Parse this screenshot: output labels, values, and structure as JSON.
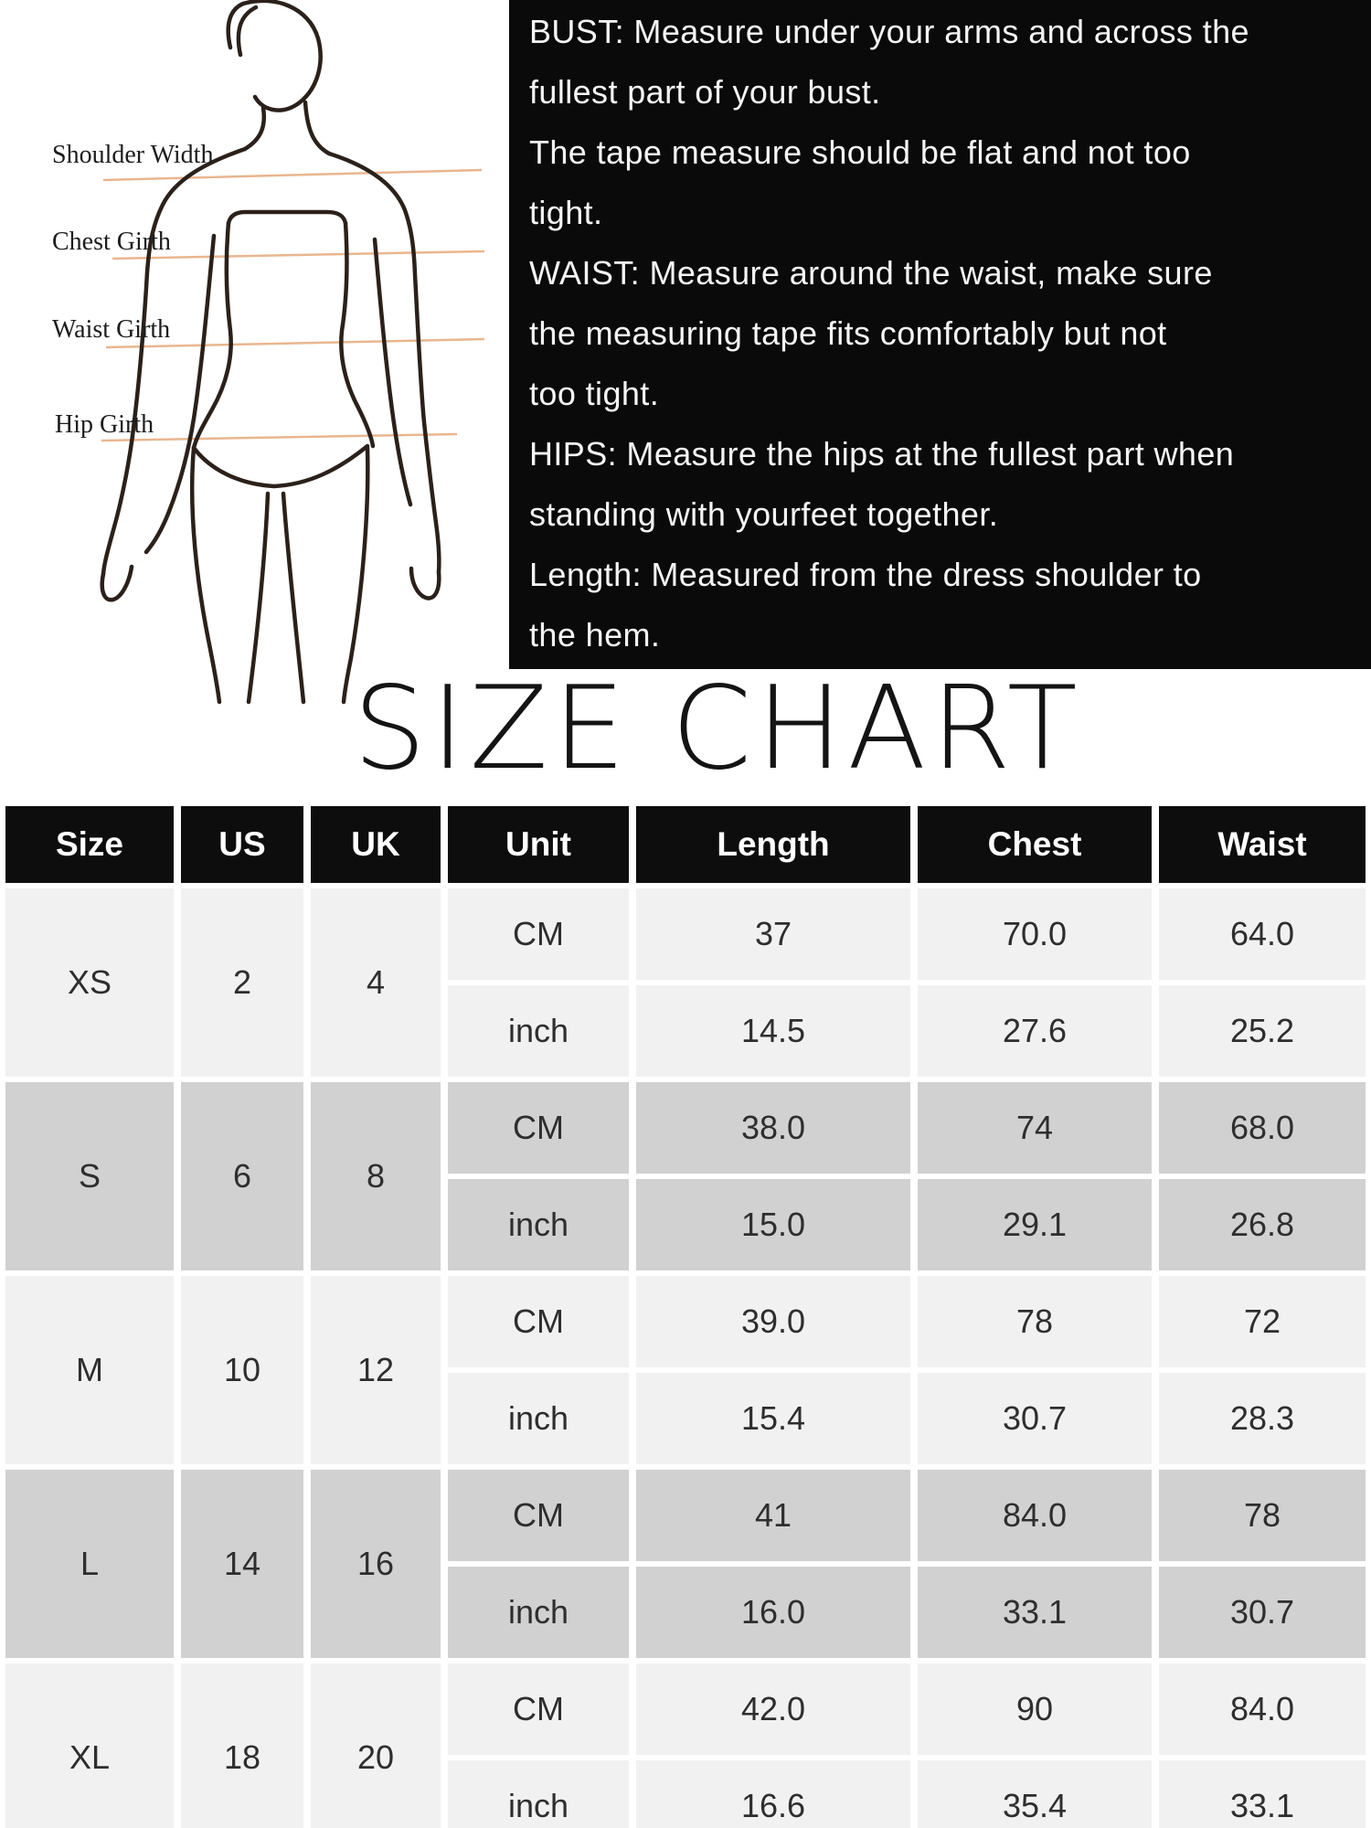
{
  "title": "SIZE CHART",
  "diagram": {
    "labels": [
      "Shoulder Width",
      "Chest Girth",
      "Waist Girth",
      "Hip Girth"
    ]
  },
  "instructions": {
    "lines": [
      "BUST: Measure under your arms and across the",
      "fullest part of your bust.",
      "The tape measure should be flat and not too",
      "tight.",
      "WAIST: Measure around the waist, make sure",
      "the measuring tape fits comfortably but not",
      "too tight.",
      "HIPS: Measure the hips at the fullest part when",
      "standing with yourfeet together.",
      "Length: Measured from the dress shoulder to",
      "the hem."
    ]
  },
  "colors": {
    "info_bg": "#0a0a0a",
    "header_bg": "#0d0d0d",
    "row_light": "#f2f1f1",
    "row_dark": "#d2d1d1",
    "accent_line": "#e9b68f",
    "figure_outline": "#2b211a"
  },
  "table": {
    "headers": [
      "Size",
      "US",
      "UK",
      "Unit",
      "Length",
      "Chest",
      "Waist"
    ],
    "unit_labels": [
      "CM",
      "inch"
    ],
    "groups": [
      {
        "size": "XS",
        "us": "2",
        "uk": "4",
        "cm": [
          "37",
          "70.0",
          "64.0"
        ],
        "inch": [
          "14.5",
          "27.6",
          "25.2"
        ]
      },
      {
        "size": "S",
        "us": "6",
        "uk": "8",
        "cm": [
          "38.0",
          "74",
          "68.0"
        ],
        "inch": [
          "15.0",
          "29.1",
          "26.8"
        ]
      },
      {
        "size": "M",
        "us": "10",
        "uk": "12",
        "cm": [
          "39.0",
          "78",
          "72"
        ],
        "inch": [
          "15.4",
          "30.7",
          "28.3"
        ]
      },
      {
        "size": "L",
        "us": "14",
        "uk": "16",
        "cm": [
          "41",
          "84.0",
          "78"
        ],
        "inch": [
          "16.0",
          "33.1",
          "30.7"
        ]
      },
      {
        "size": "XL",
        "us": "18",
        "uk": "20",
        "cm": [
          "42.0",
          "90",
          "84.0"
        ],
        "inch": [
          "16.6",
          "35.4",
          "33.1"
        ]
      }
    ]
  }
}
